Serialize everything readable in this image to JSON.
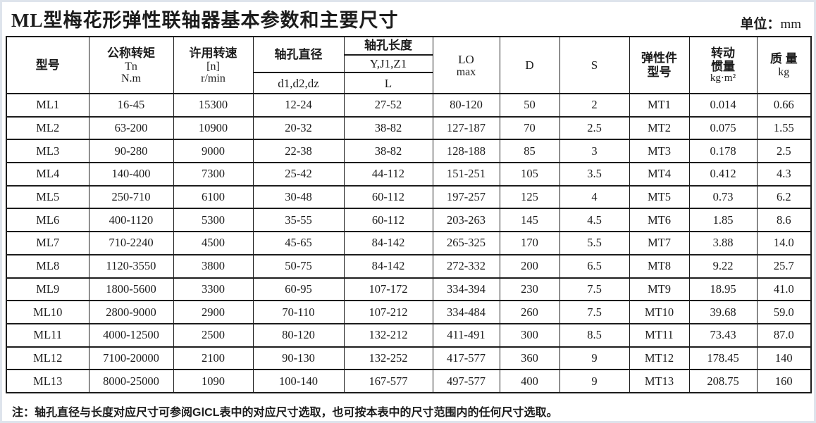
{
  "page": {
    "title": "ML型梅花形弹性联轴器基本参数和主要尺寸",
    "unit_label": "单位：",
    "unit_value": "mm",
    "note": "注：轴孔直径与长度对应尺寸可参阅GⅠCL表中的对应尺寸选取，也可按本表中的尺寸范围内的任何尺寸选取。"
  },
  "table": {
    "headers": {
      "model": "型号",
      "torque_title": "公称转矩",
      "torque_symbol": "Tn",
      "torque_unit": "N.m",
      "speed_title": "许用转速",
      "speed_symbol": "[n]",
      "speed_unit": "r/min",
      "bore_diameter_title": "轴孔直径",
      "bore_diameter_sub": "d1,d2,dz",
      "bore_length_title": "轴孔长度",
      "bore_length_types": "Y,J1,Z1",
      "bore_length_sub": "L",
      "lo_title": "LO",
      "lo_sub": "max",
      "d_label": "D",
      "s_label": "S",
      "elastic_title": "弹性件",
      "elastic_sub": "型号",
      "inertia_line1": "转动",
      "inertia_line2": "惯量",
      "inertia_unit": "kg·m²",
      "mass_title": "质 量",
      "mass_unit": "kg"
    },
    "rows": [
      [
        "ML1",
        "16-45",
        "15300",
        "12-24",
        "27-52",
        "80-120",
        "50",
        "2",
        "MT1",
        "0.014",
        "0.66"
      ],
      [
        "ML2",
        "63-200",
        "10900",
        "20-32",
        "38-82",
        "127-187",
        "70",
        "2.5",
        "MT2",
        "0.075",
        "1.55"
      ],
      [
        "ML3",
        "90-280",
        "9000",
        "22-38",
        "38-82",
        "128-188",
        "85",
        "3",
        "MT3",
        "0.178",
        "2.5"
      ],
      [
        "ML4",
        "140-400",
        "7300",
        "25-42",
        "44-112",
        "151-251",
        "105",
        "3.5",
        "MT4",
        "0.412",
        "4.3"
      ],
      [
        "ML5",
        "250-710",
        "6100",
        "30-48",
        "60-112",
        "197-257",
        "125",
        "4",
        "MT5",
        "0.73",
        "6.2"
      ],
      [
        "ML6",
        "400-1120",
        "5300",
        "35-55",
        "60-112",
        "203-263",
        "145",
        "4.5",
        "MT6",
        "1.85",
        "8.6"
      ],
      [
        "ML7",
        "710-2240",
        "4500",
        "45-65",
        "84-142",
        "265-325",
        "170",
        "5.5",
        "MT7",
        "3.88",
        "14.0"
      ],
      [
        "ML8",
        "1120-3550",
        "3800",
        "50-75",
        "84-142",
        "272-332",
        "200",
        "6.5",
        "MT8",
        "9.22",
        "25.7"
      ],
      [
        "ML9",
        "1800-5600",
        "3300",
        "60-95",
        "107-172",
        "334-394",
        "230",
        "7.5",
        "MT9",
        "18.95",
        "41.0"
      ],
      [
        "ML10",
        "2800-9000",
        "2900",
        "70-110",
        "107-212",
        "334-484",
        "260",
        "7.5",
        "MT10",
        "39.68",
        "59.0"
      ],
      [
        "ML11",
        "4000-12500",
        "2500",
        "80-120",
        "132-212",
        "411-491",
        "300",
        "8.5",
        "MT11",
        "73.43",
        "87.0"
      ],
      [
        "ML12",
        "7100-20000",
        "2100",
        "90-130",
        "132-252",
        "417-577",
        "360",
        "9",
        "MT12",
        "178.45",
        "140"
      ],
      [
        "ML13",
        "8000-25000",
        "1090",
        "100-140",
        "167-577",
        "497-577",
        "400",
        "9",
        "MT13",
        "208.75",
        "160"
      ]
    ]
  }
}
